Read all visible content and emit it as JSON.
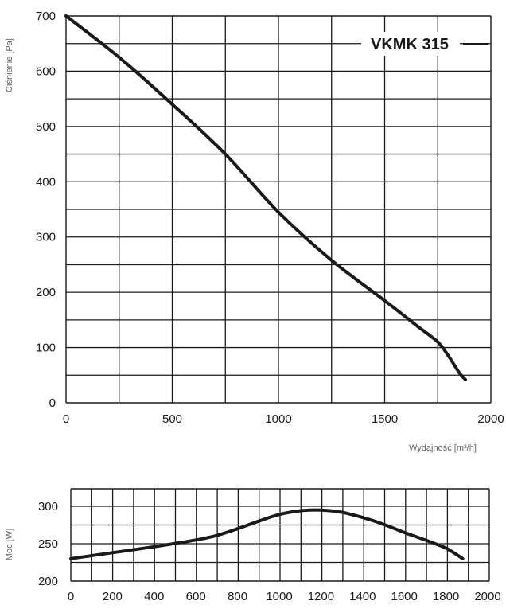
{
  "chart_data": [
    {
      "type": "line",
      "title": "VKMK 315",
      "xlabel": "Wydajność [m³/h]",
      "ylabel": "Ciśnienie [Pa]",
      "xlim": [
        0,
        2000
      ],
      "ylim": [
        0,
        700
      ],
      "x_ticks": [
        "0",
        "500",
        "1000",
        "1500",
        "2000"
      ],
      "y_ticks": [
        "0",
        "100",
        "200",
        "300",
        "400",
        "500",
        "600",
        "700"
      ],
      "grid": true,
      "series": [
        {
          "x": [
            0,
            250,
            500,
            750,
            1000,
            1250,
            1500,
            1650,
            1750,
            1800,
            1850,
            1880
          ],
          "y": [
            700,
            625,
            540,
            450,
            345,
            258,
            185,
            140,
            110,
            85,
            55,
            42
          ]
        }
      ]
    },
    {
      "type": "line",
      "title": "",
      "xlabel": "",
      "ylabel": "Moc [W]",
      "xlim": [
        0,
        1900
      ],
      "ylim": [
        200,
        300
      ],
      "x_ticks": [
        "0",
        "200",
        "400",
        "600",
        "800",
        "1000",
        "1200",
        "1400",
        "1600",
        "1800",
        "2000"
      ],
      "y_ticks": [
        "200",
        "250",
        "300"
      ],
      "grid": true,
      "series": [
        {
          "x": [
            0,
            200,
            400,
            600,
            700,
            800,
            900,
            1000,
            1100,
            1200,
            1300,
            1400,
            1500,
            1600,
            1700,
            1800,
            1880
          ],
          "y": [
            230,
            238,
            246,
            255,
            261,
            270,
            280,
            289,
            294,
            295,
            292,
            285,
            276,
            265,
            255,
            244,
            230
          ]
        }
      ]
    }
  ]
}
